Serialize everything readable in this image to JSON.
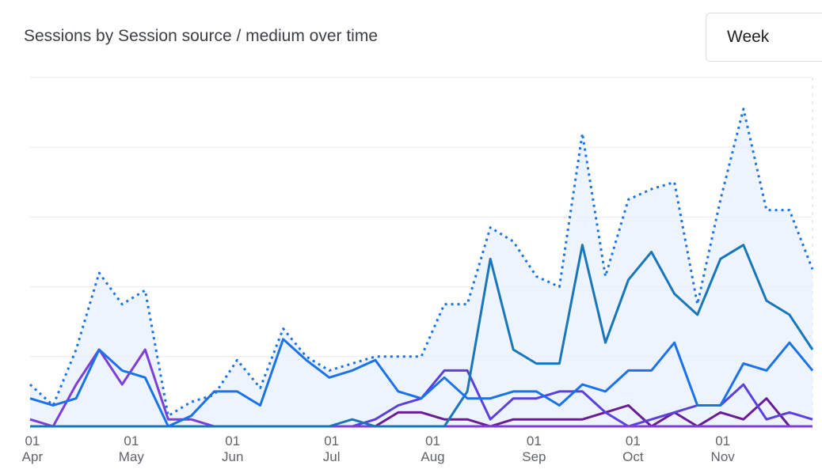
{
  "header": {
    "title": "Sessions by Session source / medium over time",
    "period": "Week"
  },
  "chart_data": {
    "type": "line",
    "title": "Sessions by Session source / medium over time",
    "xlabel": "",
    "ylabel": "",
    "ylim": [
      0,
      10
    ],
    "grid": true,
    "x": [
      "Mar 30",
      "Apr 6",
      "Apr 13",
      "Apr 20",
      "Apr 27",
      "May 4",
      "May 11",
      "May 18",
      "May 25",
      "Jun 1",
      "Jun 8",
      "Jun 15",
      "Jun 22",
      "Jun 29",
      "Jul 6",
      "Jul 13",
      "Jul 20",
      "Jul 27",
      "Aug 3",
      "Aug 10",
      "Aug 17",
      "Aug 24",
      "Aug 31",
      "Sep 7",
      "Sep 14",
      "Sep 21",
      "Sep 28",
      "Oct 5",
      "Oct 12",
      "Oct 19",
      "Oct 26",
      "Nov 2",
      "Nov 9",
      "Nov 16",
      "Nov 23"
    ],
    "x_tick_labels": [
      {
        "index": 0.1,
        "day": "01",
        "month": "Apr"
      },
      {
        "index": 4.4,
        "day": "01",
        "month": "May"
      },
      {
        "index": 8.8,
        "day": "01",
        "month": "Jun"
      },
      {
        "index": 13.1,
        "day": "01",
        "month": "Jul"
      },
      {
        "index": 17.5,
        "day": "01",
        "month": "Aug"
      },
      {
        "index": 21.9,
        "day": "01",
        "month": "Sep"
      },
      {
        "index": 26.2,
        "day": "01",
        "month": "Oct"
      },
      {
        "index": 30.1,
        "day": "01",
        "month": "Nov"
      }
    ],
    "series": [
      {
        "color": "#1a73e8",
        "style": "dotted",
        "area": true,
        "values": [
          1.2,
          0.6,
          2.2,
          4.4,
          3.5,
          3.9,
          0.3,
          0.7,
          0.9,
          1.9,
          1.1,
          2.8,
          2.0,
          1.6,
          1.8,
          2.0,
          2.0,
          2.0,
          3.5,
          3.5,
          5.7,
          5.3,
          4.3,
          4.0,
          8.4,
          4.3,
          6.5,
          6.8,
          7.0,
          3.5,
          6.5,
          9.1,
          6.2,
          6.2,
          4.5
        ]
      },
      {
        "color": "#1a73e8",
        "style": "solid",
        "values": [
          0.8,
          0.6,
          0.8,
          2.2,
          1.6,
          1.4,
          0.0,
          0.3,
          1.0,
          1.0,
          0.6,
          2.5,
          1.9,
          1.4,
          1.6,
          1.9,
          1.0,
          0.8,
          1.4,
          0.8,
          0.8,
          1.0,
          1.0,
          0.6,
          1.2,
          1.0,
          1.6,
          1.6,
          2.4,
          0.6,
          0.6,
          1.8,
          1.6,
          2.4,
          1.6
        ]
      },
      {
        "color": "#1877bb",
        "style": "solid",
        "values": [
          0,
          0,
          0,
          0,
          0,
          0,
          0,
          0,
          0,
          0,
          0,
          0,
          0,
          0,
          0.2,
          0,
          0,
          0,
          0,
          1.0,
          4.8,
          2.2,
          1.8,
          1.8,
          5.2,
          2.4,
          4.2,
          5.0,
          3.8,
          3.2,
          4.8,
          5.2,
          3.6,
          3.2,
          2.2
        ]
      },
      {
        "color": "#7e3ed8",
        "style": "solid",
        "values": [
          0.2,
          0,
          1.2,
          2.2,
          1.2,
          2.2,
          0.2,
          0.2,
          0,
          0,
          0,
          0,
          0,
          0,
          0,
          0,
          0,
          0,
          0,
          0,
          0,
          0,
          0,
          0,
          0,
          0,
          0,
          0,
          0,
          0,
          0,
          0,
          0,
          0,
          0
        ]
      },
      {
        "color": "#5b3fe0",
        "style": "solid",
        "values": [
          0,
          0,
          0,
          0,
          0,
          0,
          0,
          0,
          0,
          0,
          0,
          0,
          0,
          0,
          0,
          0.2,
          0.6,
          0.8,
          1.6,
          1.6,
          0.2,
          0.8,
          0.8,
          1.0,
          1.0,
          0.4,
          0,
          0.2,
          0.4,
          0.6,
          0.6,
          1.2,
          0.2,
          0.4,
          0.2
        ]
      },
      {
        "color": "#6a1b9a",
        "style": "solid",
        "values": [
          0,
          0,
          0,
          0,
          0,
          0,
          0,
          0,
          0,
          0,
          0,
          0,
          0,
          0,
          0,
          0,
          0.4,
          0.4,
          0.2,
          0.2,
          0,
          0.2,
          0.2,
          0.2,
          0.2,
          0.4,
          0.6,
          0,
          0.4,
          0,
          0.4,
          0.2,
          0.8,
          0,
          0
        ]
      },
      {
        "color": "#9334e6",
        "style": "solid",
        "values": [
          0,
          0,
          0,
          0,
          0,
          0,
          0,
          0,
          0,
          0,
          0,
          0,
          0,
          0,
          0,
          0,
          0,
          0,
          0,
          0,
          0,
          0,
          0,
          0,
          0,
          0,
          0,
          0,
          0,
          0,
          0,
          0,
          0,
          0,
          0
        ]
      }
    ]
  }
}
